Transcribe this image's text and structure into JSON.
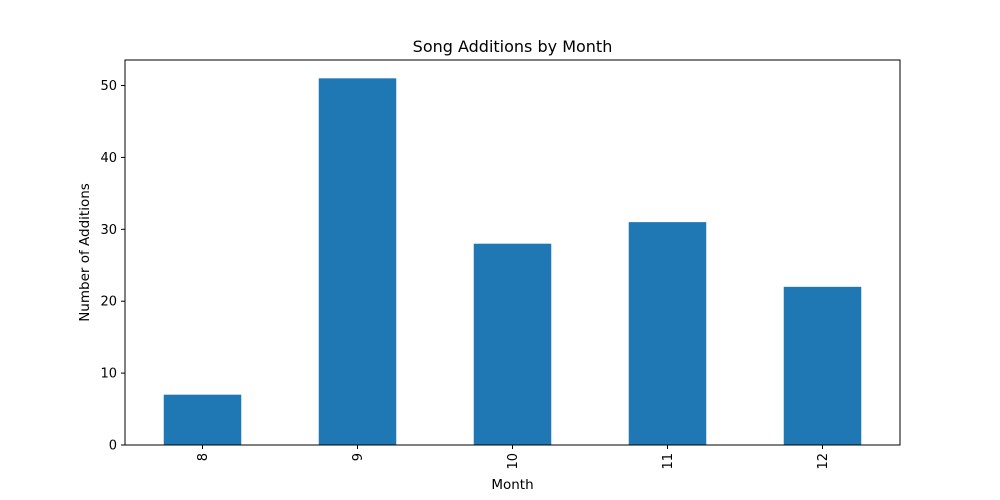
{
  "chart_data": {
    "type": "bar",
    "title": "Song Additions by Month",
    "xlabel": "Month",
    "ylabel": "Number of Additions",
    "categories": [
      "8",
      "9",
      "10",
      "11",
      "12"
    ],
    "values": [
      7,
      51,
      28,
      31,
      22
    ],
    "ylim": [
      0,
      53.55
    ],
    "yticks": [
      0,
      10,
      20,
      30,
      40,
      50
    ],
    "bar_color": "#1f77b4",
    "grid": false,
    "legend": "none"
  }
}
